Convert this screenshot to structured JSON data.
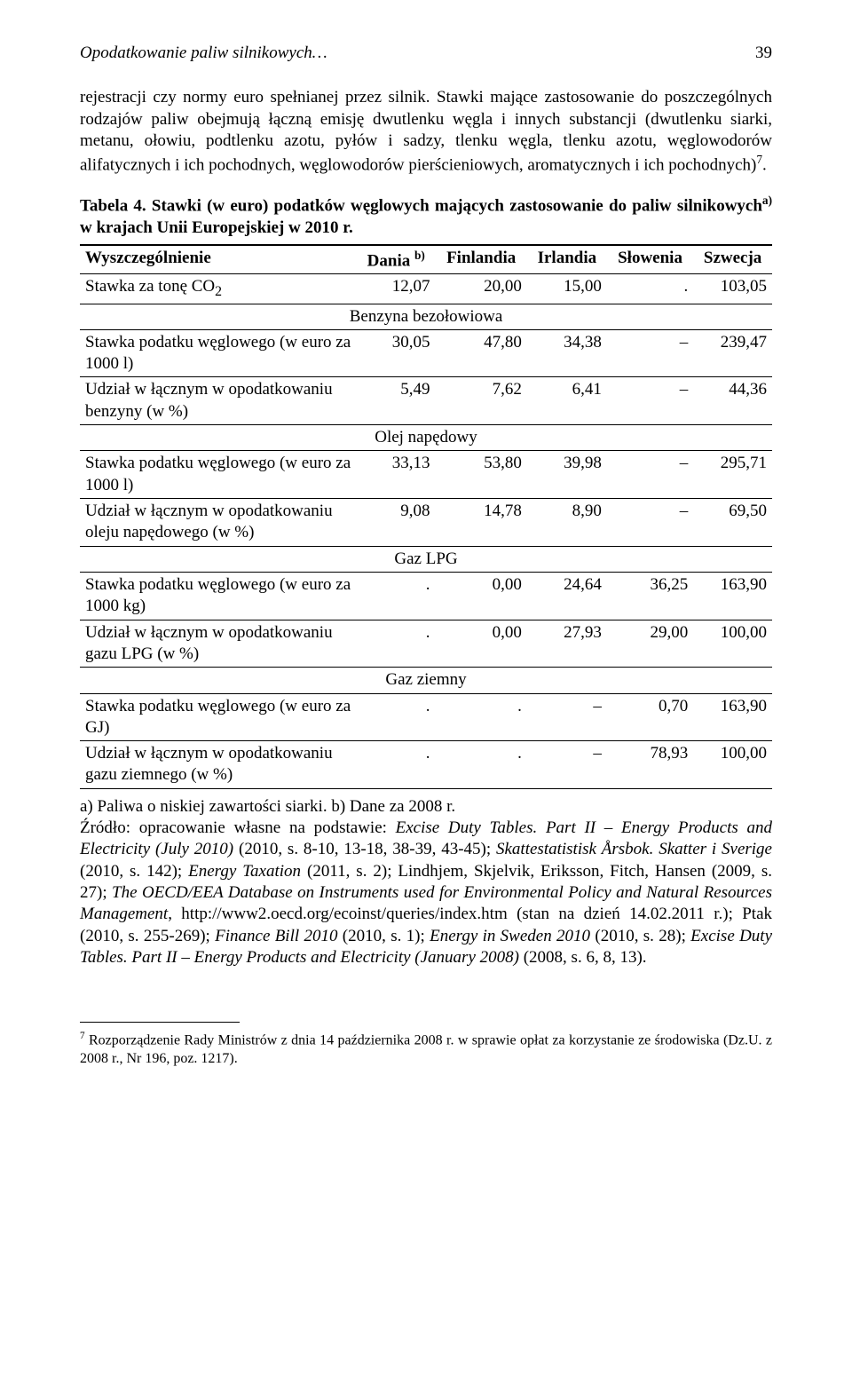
{
  "header": {
    "running_title": "Opodatkowanie paliw silnikowych…",
    "page_number": "39"
  },
  "paragraphs": {
    "p1": "rejestracji czy normy euro spełnianej przez silnik. Stawki mające zastosowanie do poszczególnych rodzajów paliw obejmują łączną emisję dwutlenku węgla i innych substancji (dwutlenku siarki, metanu, ołowiu, podtlenku azotu, pyłów i sadzy, tlenku węgla, tlenku azotu, węglowodorów alifatycznych i ich pochodnych, węglowodorów pierścieniowych, aromatycznych i ich pochodnych)",
    "p1_sup": "7",
    "p1_tail": "."
  },
  "table": {
    "caption_lead": "Tabela 4. Stawki (w euro) podatków węglowych mających zastosowanie do paliw silnikowych",
    "caption_sup": "a)",
    "caption_tail": " w krajach Unii Europejskiej w 2010 r.",
    "columns": [
      "Wyszczególnienie",
      "Dania",
      "Finlandia",
      "Irlandia",
      "Słowenia",
      "Szwecja"
    ],
    "col_sup": [
      "",
      "b)",
      "",
      "",
      "",
      ""
    ],
    "rows": [
      {
        "label": "Stawka za tonę CO",
        "label_sub": "2",
        "vals": [
          "12,07",
          "20,00",
          "15,00",
          ".",
          "103,05"
        ]
      }
    ],
    "sections": [
      {
        "title": "Benzyna bezołowiowa",
        "rows": [
          {
            "label": "Stawka podatku węglowego (w euro za 1000 l)",
            "vals": [
              "30,05",
              "47,80",
              "34,38",
              "–",
              "239,47"
            ]
          },
          {
            "label": "Udział w łącznym w opodatkowaniu benzyny (w %)",
            "vals": [
              "5,49",
              "7,62",
              "6,41",
              "–",
              "44,36"
            ]
          }
        ]
      },
      {
        "title": "Olej napędowy",
        "rows": [
          {
            "label": "Stawka podatku węglowego (w euro za 1000 l)",
            "vals": [
              "33,13",
              "53,80",
              "39,98",
              "–",
              "295,71"
            ]
          },
          {
            "label": "Udział w łącznym w opodatkowaniu oleju napędowego (w %)",
            "vals": [
              "9,08",
              "14,78",
              "8,90",
              "–",
              "69,50"
            ]
          }
        ]
      },
      {
        "title": "Gaz LPG",
        "rows": [
          {
            "label": "Stawka podatku węglowego (w euro za 1000 kg)",
            "vals": [
              ".",
              "0,00",
              "24,64",
              "36,25",
              "163,90"
            ]
          },
          {
            "label": "Udział w łącznym w opodatkowaniu gazu LPG (w %)",
            "vals": [
              ".",
              "0,00",
              "27,93",
              "29,00",
              "100,00"
            ]
          }
        ]
      },
      {
        "title": "Gaz ziemny",
        "rows": [
          {
            "label": "Stawka podatku węglowego (w euro za GJ)",
            "vals": [
              ".",
              ".",
              "–",
              "0,70",
              "163,90"
            ]
          },
          {
            "label": "Udział w łącznym w opodatkowaniu gazu ziemnego (w %)",
            "vals": [
              ".",
              ".",
              "–",
              "78,93",
              "100,00"
            ]
          }
        ]
      }
    ]
  },
  "notes": {
    "line_a": "a) Paliwa o niskiej zawartości siarki. b) Dane za 2008 r.",
    "src_prefix": "Źródło: opracowanie własne na podstawie: ",
    "src_i1": "Excise Duty Tables. Part II – Energy Products and Electricity (July 2010)",
    "src_t1": " (2010, s. 8-10, 13-18, 38-39, 43-45); ",
    "src_i2": "Skattestatistisk Årsbok. Skatter i Sverige",
    "src_t2": " (2010, s. 142); ",
    "src_i3": "Energy Taxation",
    "src_t3": " (2011, s. 2); Lindhjem, Skjelvik, Eriksson, Fitch, Hansen (2009, s. 27); ",
    "src_i4": "The OECD/EEA Database on Instruments used for Environmental Policy and Natural Resources Management",
    "src_t4": ", http://www2.oecd.org/ecoinst/queries/index.htm (stan na dzień 14.02.2011 r.); Ptak (2010, s. 255-269); ",
    "src_i5": "Finance Bill 2010",
    "src_t5": " (2010, s. 1); ",
    "src_i6": "Energy in Sweden 2010",
    "src_t6": " (2010, s. 28); ",
    "src_i7": "Excise Duty Tables. Part II – Energy Products and Electricity (January 2008)",
    "src_t7": " (2008, s. 6, 8, 13)."
  },
  "footnote": {
    "num": "7",
    "text": " Rozporządzenie Rady Ministrów z dnia 14 października 2008 r. w sprawie opłat za korzystanie ze środowiska (Dz.U. z 2008 r., Nr 196, poz. 1217)."
  }
}
